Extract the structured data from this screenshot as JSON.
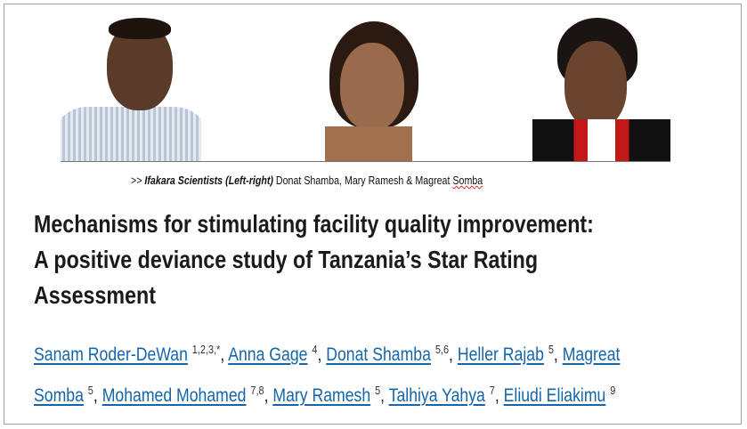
{
  "caption": {
    "prefix": ">> ",
    "italic": "Ifakara Scientists (Left-right)",
    "names": " Donat Shamba, Mary Ramesh & Magreat ",
    "last": "Somba"
  },
  "title": {
    "line1": "Mechanisms for stimulating facility quality improvement:",
    "line2": "A positive deviance study of Tanzania’s Star Rating",
    "line3": "Assessment"
  },
  "authors": [
    {
      "name": "Sanam Roder-DeWan",
      "sup": "1,2,3,*"
    },
    {
      "name": "Anna Gage",
      "sup": "4"
    },
    {
      "name": "Donat Shamba",
      "sup": "5,6"
    },
    {
      "name": "Heller Rajab",
      "sup": "5"
    },
    {
      "name": "Magreat",
      "name_cont": "Somba",
      "sup": "5"
    },
    {
      "name": "Mohamed Mohamed",
      "sup": "7,8"
    },
    {
      "name": "Mary Ramesh",
      "sup": "5"
    },
    {
      "name": "Talhiya Yahya",
      "sup": "7"
    },
    {
      "name": "Eliudi Eliakimu",
      "sup": "9"
    }
  ],
  "colors": {
    "link": "#1565a8",
    "title": "#1b1b1b"
  }
}
